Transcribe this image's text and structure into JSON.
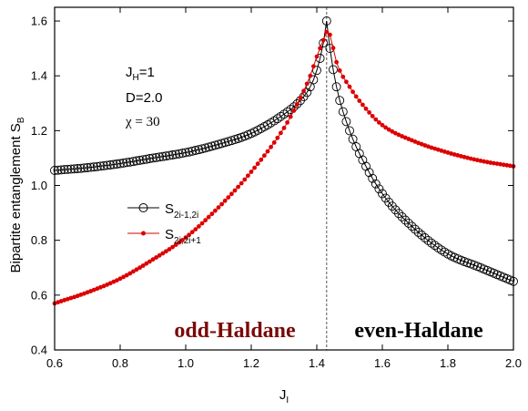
{
  "chart_data": {
    "type": "line",
    "xlabel": "J",
    "xlabel_sub": "I",
    "ylabel": "Bipartite entanglement S",
    "ylabel_sub": "B",
    "xlim": [
      0.6,
      2.0
    ],
    "ylim": [
      0.4,
      1.65
    ],
    "xticks": [
      "0.6",
      "0.8",
      "1.0",
      "1.2",
      "1.4",
      "1.6",
      "1.8",
      "2.0"
    ],
    "yticks": [
      "0.4",
      "0.6",
      "0.8",
      "1.0",
      "1.2",
      "1.4",
      "1.6"
    ],
    "critical_x": 1.43,
    "params": {
      "jh_main": "J",
      "jh_sub": "H",
      "jh_value": "=1",
      "d": "D=2.0",
      "chi": "χ = 30"
    },
    "legend": {
      "placement": "middle-left",
      "entries": [
        {
          "main": "S",
          "sub": "2i-1,2i"
        },
        {
          "main": "S",
          "sub": "2i,2i+1"
        }
      ]
    },
    "phase_labels": {
      "left": "odd-Haldane",
      "right": "even-Haldane"
    },
    "colors": {
      "series1": "#000000",
      "series2": "#dd0000",
      "phase_left": "#7a0a0a",
      "phase_right": "#000000"
    },
    "series": [
      {
        "marker": "open-circle",
        "x": [
          0.6,
          0.7,
          0.8,
          0.9,
          1.0,
          1.1,
          1.2,
          1.3,
          1.35,
          1.38,
          1.4,
          1.42,
          1.43,
          1.44,
          1.46,
          1.5,
          1.55,
          1.6,
          1.7,
          1.8,
          1.9,
          2.0
        ],
        "values": [
          1.055,
          1.065,
          1.08,
          1.1,
          1.12,
          1.15,
          1.19,
          1.26,
          1.31,
          1.36,
          1.42,
          1.52,
          1.6,
          1.5,
          1.36,
          1.2,
          1.07,
          0.97,
          0.84,
          0.75,
          0.7,
          0.65
        ]
      },
      {
        "marker": "filled-dot",
        "x": [
          0.6,
          0.7,
          0.8,
          0.9,
          1.0,
          1.1,
          1.2,
          1.3,
          1.35,
          1.38,
          1.4,
          1.42,
          1.43,
          1.44,
          1.46,
          1.5,
          1.55,
          1.6,
          1.7,
          1.8,
          1.9,
          2.0
        ],
        "values": [
          0.57,
          0.61,
          0.66,
          0.73,
          0.81,
          0.92,
          1.05,
          1.21,
          1.32,
          1.4,
          1.47,
          1.53,
          1.56,
          1.55,
          1.45,
          1.36,
          1.28,
          1.22,
          1.16,
          1.12,
          1.09,
          1.07
        ]
      }
    ]
  }
}
